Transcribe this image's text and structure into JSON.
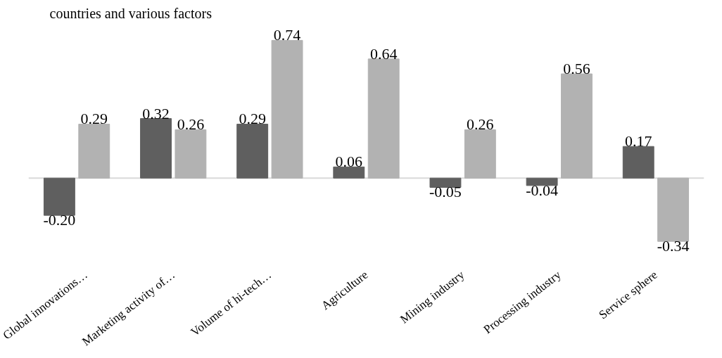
{
  "chart_data": {
    "type": "bar",
    "title": "countries and various factors",
    "categories": [
      "Global innovations…",
      "Marketing activity of…",
      "Volume of hi-tech…",
      "Agriculture",
      "Mining industry",
      "Processing industry",
      "Service sphere"
    ],
    "series": [
      {
        "color": "#5f5f5f",
        "values": [
          -0.2,
          0.32,
          0.29,
          0.06,
          -0.05,
          -0.04,
          0.17
        ],
        "value_labels": [
          "-0.20",
          "0.32",
          "0.29",
          "0.06",
          "-0.05",
          "-0.04",
          "0.17"
        ]
      },
      {
        "color": "#b2b2b2",
        "values": [
          0.29,
          0.26,
          0.74,
          0.64,
          0.26,
          0.56,
          -0.34
        ],
        "value_labels": [
          "0.29",
          "0.26",
          "0.74",
          "0.64",
          "0.26",
          "0.56",
          "-0.34"
        ]
      }
    ],
    "grid": false
  }
}
